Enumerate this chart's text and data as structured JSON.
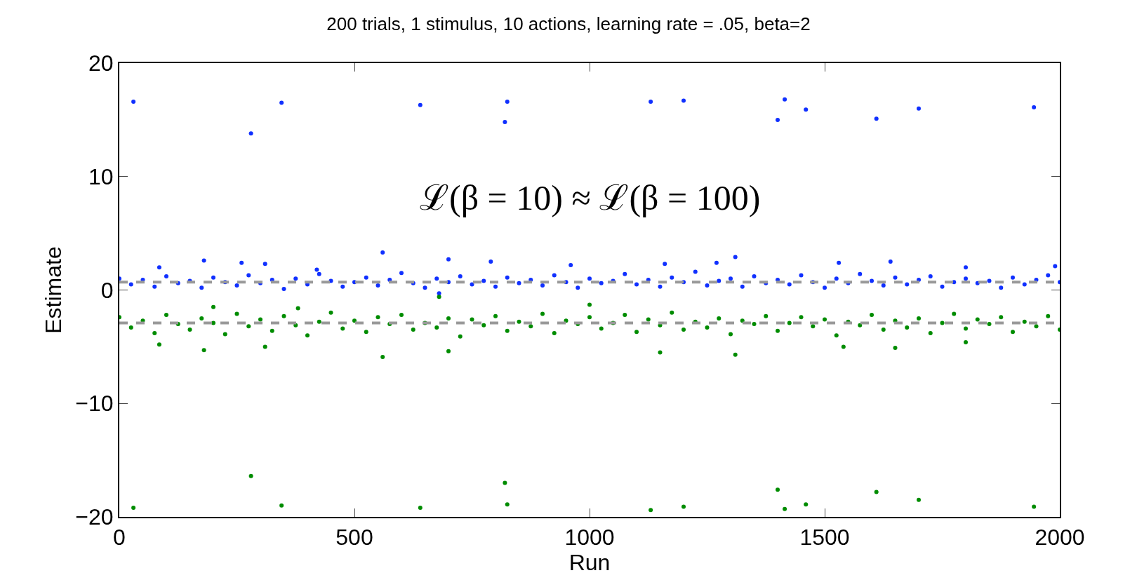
{
  "chart_data": {
    "type": "scatter",
    "title": "200 trials, 1 stimulus, 10 actions, learning rate = .05, beta=2",
    "xlabel": "Run",
    "ylabel": "Estimate",
    "xlim": [
      0,
      2000
    ],
    "ylim": [
      -20,
      20
    ],
    "xticks": [
      0,
      500,
      1000,
      1500,
      2000
    ],
    "yticks": [
      {
        "value": -20,
        "label": "−20"
      },
      {
        "value": -10,
        "label": "−10"
      },
      0,
      10,
      20
    ],
    "marker": "circle",
    "annotations": [
      "ℒ(β = 10) ≈ ℒ(β = 100)"
    ],
    "ref_lines": [
      {
        "axis": "y",
        "value": 0.7,
        "color": "#999999",
        "line_style": "dashed"
      },
      {
        "axis": "y",
        "value": -2.9,
        "color": "#999999",
        "line_style": "dashed"
      }
    ],
    "series": [
      {
        "color": "#1030ff",
        "x": [
          30,
          280,
          345,
          640,
          820,
          825,
          1130,
          1200,
          1400,
          1415,
          1460,
          1610,
          1700,
          1945,
          85,
          180,
          260,
          310,
          420,
          560,
          700,
          790,
          960,
          1160,
          1270,
          1310,
          1530,
          1640,
          1800,
          1990,
          680,
          0,
          25,
          50,
          75,
          100,
          125,
          150,
          175,
          200,
          225,
          250,
          275,
          300,
          325,
          350,
          375,
          400,
          425,
          450,
          475,
          500,
          525,
          550,
          575,
          600,
          625,
          650,
          675,
          700,
          725,
          750,
          775,
          800,
          825,
          850,
          875,
          900,
          925,
          950,
          975,
          1000,
          1025,
          1050,
          1075,
          1100,
          1125,
          1150,
          1175,
          1200,
          1225,
          1250,
          1275,
          1300,
          1325,
          1350,
          1375,
          1400,
          1425,
          1450,
          1475,
          1500,
          1525,
          1550,
          1575,
          1600,
          1625,
          1650,
          1675,
          1700,
          1725,
          1750,
          1775,
          1800,
          1825,
          1850,
          1875,
          1900,
          1925,
          1950,
          1975,
          2000
        ],
        "values": [
          16.6,
          13.8,
          16.5,
          16.3,
          14.8,
          16.6,
          16.6,
          16.7,
          15.0,
          16.8,
          15.9,
          15.1,
          16.0,
          16.1,
          2.0,
          2.6,
          2.4,
          2.3,
          1.8,
          3.3,
          2.7,
          2.5,
          2.2,
          2.3,
          2.4,
          2.9,
          2.4,
          2.5,
          2.0,
          2.1,
          -0.3,
          1.0,
          0.5,
          0.9,
          0.3,
          1.2,
          0.6,
          0.8,
          0.2,
          1.1,
          0.7,
          0.4,
          1.3,
          0.6,
          0.9,
          0.1,
          1.0,
          0.5,
          1.4,
          0.8,
          0.3,
          0.7,
          1.1,
          0.4,
          0.9,
          1.5,
          0.6,
          0.2,
          1.0,
          0.7,
          1.2,
          0.5,
          0.8,
          0.3,
          1.1,
          0.6,
          0.9,
          0.4,
          1.3,
          0.7,
          0.2,
          1.0,
          0.6,
          0.8,
          1.4,
          0.5,
          0.9,
          0.3,
          1.1,
          0.7,
          1.6,
          0.4,
          0.8,
          1.0,
          0.3,
          1.2,
          0.6,
          0.9,
          0.5,
          1.3,
          0.7,
          0.2,
          1.0,
          0.6,
          1.4,
          0.8,
          0.4,
          1.1,
          0.5,
          0.9,
          1.2,
          0.3,
          0.7,
          1.0,
          0.6,
          0.8,
          0.2,
          1.1,
          0.5,
          0.9,
          1.3,
          0.7
        ]
      },
      {
        "color": "#008c00",
        "x": [
          30,
          280,
          345,
          640,
          820,
          825,
          1130,
          1200,
          1400,
          1415,
          1460,
          1610,
          1700,
          1945,
          85,
          180,
          310,
          560,
          700,
          1150,
          1310,
          1540,
          1650,
          1800,
          200,
          380,
          680,
          1000,
          0,
          25,
          50,
          75,
          100,
          125,
          150,
          175,
          200,
          225,
          250,
          275,
          300,
          325,
          350,
          375,
          400,
          425,
          450,
          475,
          500,
          525,
          550,
          575,
          600,
          625,
          650,
          675,
          700,
          725,
          750,
          775,
          800,
          825,
          850,
          875,
          900,
          925,
          950,
          975,
          1000,
          1025,
          1050,
          1075,
          1100,
          1125,
          1150,
          1175,
          1200,
          1225,
          1250,
          1275,
          1300,
          1325,
          1350,
          1375,
          1400,
          1425,
          1450,
          1475,
          1500,
          1525,
          1550,
          1575,
          1600,
          1625,
          1650,
          1675,
          1700,
          1725,
          1750,
          1775,
          1800,
          1825,
          1850,
          1875,
          1900,
          1925,
          1950,
          1975,
          2000
        ],
        "values": [
          -19.2,
          -16.4,
          -19.0,
          -19.2,
          -17.0,
          -18.9,
          -19.4,
          -19.1,
          -17.6,
          -19.3,
          -18.9,
          -17.8,
          -18.5,
          -19.1,
          -4.8,
          -5.3,
          -5.0,
          -5.9,
          -5.4,
          -5.5,
          -5.7,
          -5.0,
          -5.1,
          -4.6,
          -1.5,
          -1.6,
          -0.6,
          -1.3,
          -2.4,
          -3.3,
          -2.7,
          -3.8,
          -2.2,
          -3.0,
          -3.5,
          -2.5,
          -2.9,
          -3.9,
          -2.1,
          -3.2,
          -2.6,
          -3.6,
          -2.3,
          -3.1,
          -4.0,
          -2.8,
          -2.0,
          -3.4,
          -2.7,
          -3.7,
          -2.4,
          -3.0,
          -2.2,
          -3.5,
          -2.9,
          -3.3,
          -2.5,
          -4.1,
          -2.6,
          -3.1,
          -2.3,
          -3.6,
          -2.8,
          -3.2,
          -2.1,
          -3.8,
          -2.7,
          -3.0,
          -2.4,
          -3.4,
          -2.9,
          -2.2,
          -3.7,
          -2.6,
          -3.1,
          -2.0,
          -3.5,
          -2.8,
          -3.3,
          -2.5,
          -3.9,
          -2.7,
          -3.0,
          -2.3,
          -3.6,
          -2.9,
          -2.4,
          -3.2,
          -2.6,
          -4.0,
          -2.8,
          -3.1,
          -2.2,
          -3.5,
          -2.7,
          -3.3,
          -2.5,
          -3.8,
          -2.9,
          -2.1,
          -3.4,
          -2.6,
          -3.0,
          -2.4,
          -3.7,
          -2.8,
          -3.2,
          -2.3,
          -3.5
        ]
      }
    ]
  }
}
